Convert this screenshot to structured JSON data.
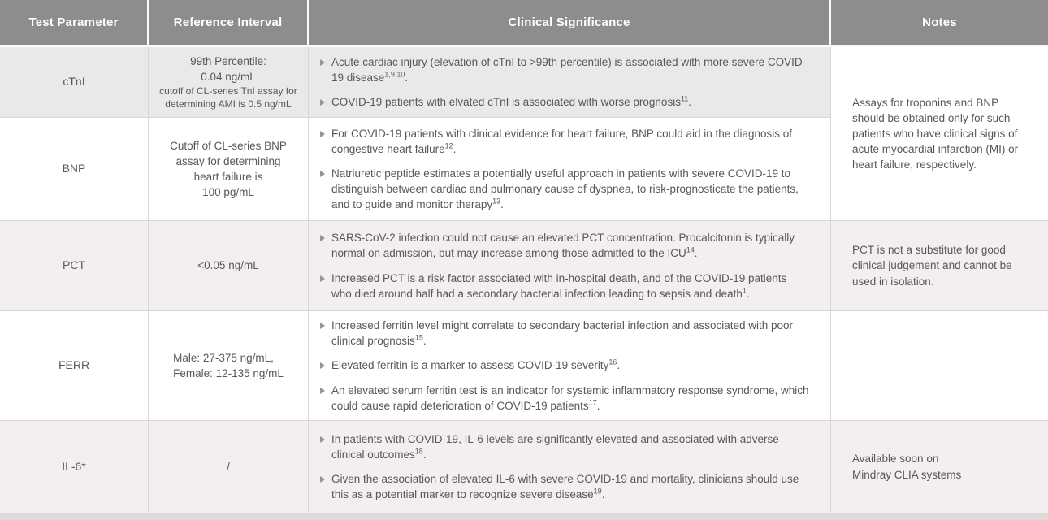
{
  "colors": {
    "header_bg": "#8e8c8c",
    "header_text": "#ffffff",
    "stripe_row": "#ebe8e8",
    "stripe_row_light": "#f2efee",
    "body_text": "#595757",
    "border": "#d9d6da",
    "bullet_triangle": "#969494"
  },
  "header": {
    "columns": [
      "Test Parameter",
      "Reference Interval",
      "Clinical Significance",
      "Notes"
    ]
  },
  "merged_note": {
    "lines": [
      "Assays for troponins and BNP",
      "should be obtained only for such",
      "patients who have clinical signs of",
      "acute myocardial infarction (MI) or",
      "heart failure, respectively."
    ]
  },
  "rows": [
    {
      "parameter": "cTnI",
      "reference": {
        "main_lines": [
          "99th Percentile:",
          "0.04 ng/mL"
        ],
        "sub_lines": [
          "cutoff of CL-series TnI assay for",
          "determining AMI is 0.5 ng/mL"
        ]
      },
      "significance": [
        {
          "text": "Acute cardiac injury (elevation of cTnI to >99th percentile) is associated with more severe COVID-19 disease",
          "sup": "1,9,10",
          "suffix": "."
        },
        {
          "text": "COVID-19 patients with elvated cTnI is associated with worse prognosis",
          "sup": "11",
          "suffix": "."
        }
      ]
    },
    {
      "parameter": "BNP",
      "reference": {
        "lines": [
          "Cutoff of CL-series BNP",
          "assay for determining",
          "heart failure is",
          "100 pg/mL"
        ]
      },
      "significance": [
        {
          "text": "For COVID-19 patients with clinical evidence for heart failure, BNP could aid in the diagnosis of congestive heart failure",
          "sup": "12",
          "suffix": "."
        },
        {
          "text": "Natriuretic peptide estimates a potentially useful approach in patients with severe COVID-19 to distinguish between cardiac and pulmonary cause of dyspnea, to risk-prognosticate the patients, and to guide and monitor therapy",
          "sup": "13",
          "suffix": "."
        }
      ]
    },
    {
      "parameter": "PCT",
      "reference": {
        "lines": [
          "<0.05 ng/mL"
        ]
      },
      "significance": [
        {
          "text": "SARS-CoV-2 infection could not cause an elevated PCT concentration. Procalcitonin is typically normal on admission, but may increase among those admitted to the ICU",
          "sup": "14",
          "suffix": "."
        },
        {
          "text": "Increased PCT is a risk factor associated with in-hospital death, and of the COVID-19 patients who died around half had a secondary bacterial infection leading to sepsis and death",
          "sup": "1",
          "suffix": "."
        }
      ],
      "note_lines": [
        "PCT is not a substitute for good",
        "clinical judgement and cannot be",
        "used in isolation."
      ]
    },
    {
      "parameter": "FERR",
      "reference": {
        "lines": [
          "Male: 27-375 ng/mL,",
          "Female: 12-135 ng/mL"
        ]
      },
      "significance": [
        {
          "text": "Increased ferritin level might correlate to secondary bacterial infection and associated with poor clinical prognosis",
          "sup": "15",
          "suffix": "."
        },
        {
          "text": "Elevated ferritin is a marker to assess COVID-19 severity",
          "sup": "16",
          "suffix": "."
        },
        {
          "text": "An elevated serum ferritin test is an indicator for systemic inflammatory response syndrome, which could cause rapid deterioration of COVID-19 patients",
          "sup": "17",
          "suffix": "."
        }
      ],
      "note_lines": []
    },
    {
      "parameter": "IL-6*",
      "reference": {
        "lines": [
          "/"
        ]
      },
      "significance": [
        {
          "text": "In patients with COVID-19, IL-6 levels are significantly elevated and associated with adverse clinical outcomes",
          "sup": "18",
          "suffix": "."
        },
        {
          "text": "Given the association of elevated IL-6 with severe COVID-19 and mortality, clinicians should use this as a potential marker to recognize severe disease",
          "sup": "19",
          "suffix": "."
        }
      ],
      "note_lines": [
        "Available soon on",
        "Mindray CLIA systems"
      ]
    }
  ]
}
